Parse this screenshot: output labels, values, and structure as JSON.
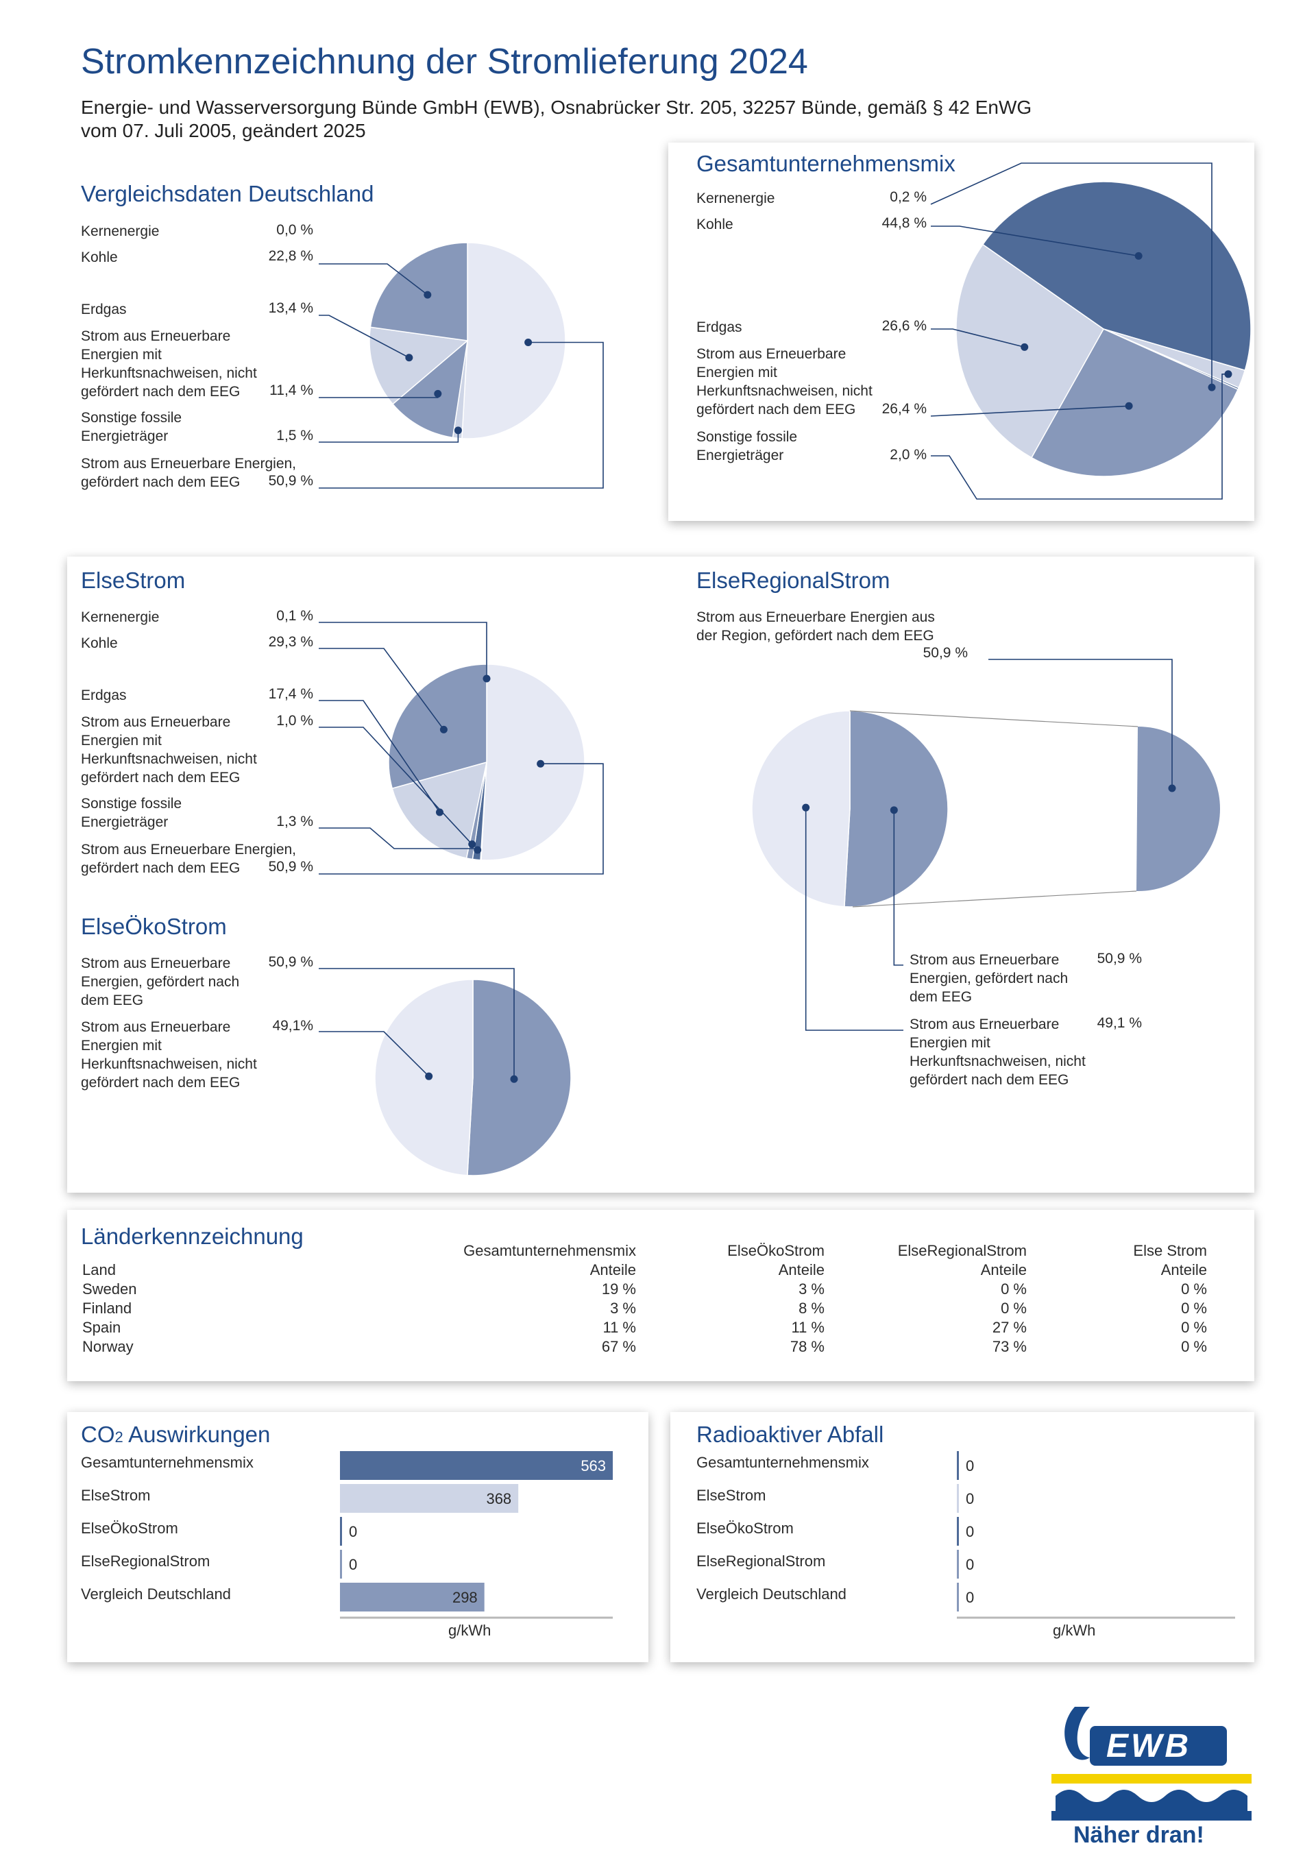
{
  "title": "Stromkennzeichnung der Stromlieferung 2024",
  "subtitle_line1": "Energie- und Wasserversorgung Bünde GmbH (EWB), Osnabrücker Str. 205, 32257 Bünde, gemäß § 42 EnWG",
  "subtitle_line2": "vom 07. Juli 2005, geändert 2025",
  "colors": {
    "dark": "#4f6b98",
    "mid": "#8798ba",
    "light": "#ced5e6",
    "lighter": "#e6e9f4",
    "accent": "#1f4a89",
    "line": "#1f3f73"
  },
  "chart_data": [
    {
      "id": "vergleich",
      "type": "pie",
      "title": "Vergleichsdaten Deutschland",
      "series": [
        {
          "label": "Kernenergie",
          "value": 0.0,
          "display": "0,0 %"
        },
        {
          "label": "Kohle",
          "value": 22.8,
          "display": "22,8 %"
        },
        {
          "label": "Erdgas",
          "value": 13.4,
          "display": "13,4 %"
        },
        {
          "label": "Strom aus Erneuerbare Energien mit Herkunftsnachweisen, nicht gefördert nach dem EEG",
          "value": 11.4,
          "display": "11,4 %"
        },
        {
          "label": "Sonstige fossile Energieträger",
          "value": 1.5,
          "display": "1,5 %"
        },
        {
          "label": "Strom aus Erneuerbare Energien, gefördert nach dem EEG",
          "value": 50.9,
          "display": "50,9 %"
        }
      ]
    },
    {
      "id": "gesamt",
      "type": "pie",
      "title": "Gesamtunternehmensmix",
      "series": [
        {
          "label": "Kernenergie",
          "value": 0.2,
          "display": "0,2 %"
        },
        {
          "label": "Kohle",
          "value": 44.8,
          "display": "44,8 %"
        },
        {
          "label": "Erdgas",
          "value": 26.6,
          "display": "26,6 %"
        },
        {
          "label": "Strom aus Erneuerbare Energien mit Herkunftsnachweisen, nicht gefördert nach dem EEG",
          "value": 26.4,
          "display": "26,4 %"
        },
        {
          "label": "Sonstige fossile Energieträger",
          "value": 2.0,
          "display": "2,0 %"
        }
      ]
    },
    {
      "id": "elsestrom",
      "type": "pie",
      "title": "ElseStrom",
      "series": [
        {
          "label": "Kernenergie",
          "value": 0.1,
          "display": "0,1 %"
        },
        {
          "label": "Kohle",
          "value": 29.3,
          "display": "29,3 %"
        },
        {
          "label": "Erdgas",
          "value": 17.4,
          "display": "17,4 %"
        },
        {
          "label": "Strom aus Erneuerbare Energien mit Herkunftsnachweisen, nicht gefördert nach dem EEG",
          "value": 1.0,
          "display": "1,0 %"
        },
        {
          "label": "Sonstige fossile Energieträger",
          "value": 1.3,
          "display": "1,3 %"
        },
        {
          "label": "Strom aus Erneuerbare Energien, gefördert nach dem EEG",
          "value": 50.9,
          "display": "50,9 %"
        }
      ]
    },
    {
      "id": "elseoeko",
      "type": "pie",
      "title": "ElseÖkoStrom",
      "series": [
        {
          "label": "Strom aus Erneuerbare Energien, gefördert nach dem EEG",
          "value": 50.9,
          "display": "50,9 %"
        },
        {
          "label": "Strom aus Erneuerbare Energien mit Herkunftsnachweisen, nicht gefördert nach dem EEG",
          "value": 49.1,
          "display": "49,1%"
        }
      ]
    },
    {
      "id": "elseregional",
      "type": "pie",
      "title": "ElseRegionalStrom",
      "series": [
        {
          "label": "Strom aus Erneuerbare Energien, gefördert nach dem EEG",
          "value": 50.9,
          "display": "50,9 %"
        },
        {
          "label": "Strom aus Erneuerbare Energien mit Herkunftsnachweisen, nicht gefördert nach dem EEG",
          "value": 49.1,
          "display": "49,1 %"
        }
      ],
      "breakout": {
        "label": "Strom aus Erneuerbare Energien aus der Region, gefördert nach dem EEG",
        "value": 50.9,
        "display": "50,9 %"
      }
    },
    {
      "id": "laender",
      "type": "table",
      "title": "Länderkennzeichnung",
      "columns": [
        {
          "name": "Land",
          "sub": ""
        },
        {
          "name": "Gesamtunternehmensmix",
          "sub": "Anteile"
        },
        {
          "name": "ElseÖkoStrom",
          "sub": "Anteile"
        },
        {
          "name": "ElseRegionalStrom",
          "sub": "Anteile"
        },
        {
          "name": "Else Strom",
          "sub": "Anteile"
        }
      ],
      "rows": [
        [
          "Sweden",
          "19 %",
          "3 %",
          "0 %",
          "0 %"
        ],
        [
          "Finland",
          "3 %",
          "8 %",
          "0 %",
          "0 %"
        ],
        [
          "Spain",
          "11 %",
          "11 %",
          "27 %",
          "0 %"
        ],
        [
          "Norway",
          "67 %",
          "78 %",
          "73 %",
          "0 %"
        ]
      ]
    },
    {
      "id": "co2",
      "type": "bar",
      "title_main": "CO",
      "title_sub": "2",
      "title_rest": " Auswirkungen",
      "xlabel": "g/kWh",
      "categories": [
        "Gesamtunternehmensmix",
        "ElseStrom",
        "ElseÖkoStrom",
        "ElseRegionalStrom",
        "Vergleich Deutschland"
      ],
      "values": [
        563,
        368,
        0,
        0,
        298
      ]
    },
    {
      "id": "radio",
      "type": "bar",
      "title": "Radioaktiver Abfall",
      "xlabel": "g/kWh",
      "categories": [
        "Gesamtunternehmensmix",
        "ElseStrom",
        "ElseÖkoStrom",
        "ElseRegionalStrom",
        "Vergleich Deutschland"
      ],
      "values": [
        0,
        0,
        0,
        0,
        0
      ]
    }
  ],
  "logo": {
    "text": "EWB",
    "slogan": "Näher dran!"
  }
}
